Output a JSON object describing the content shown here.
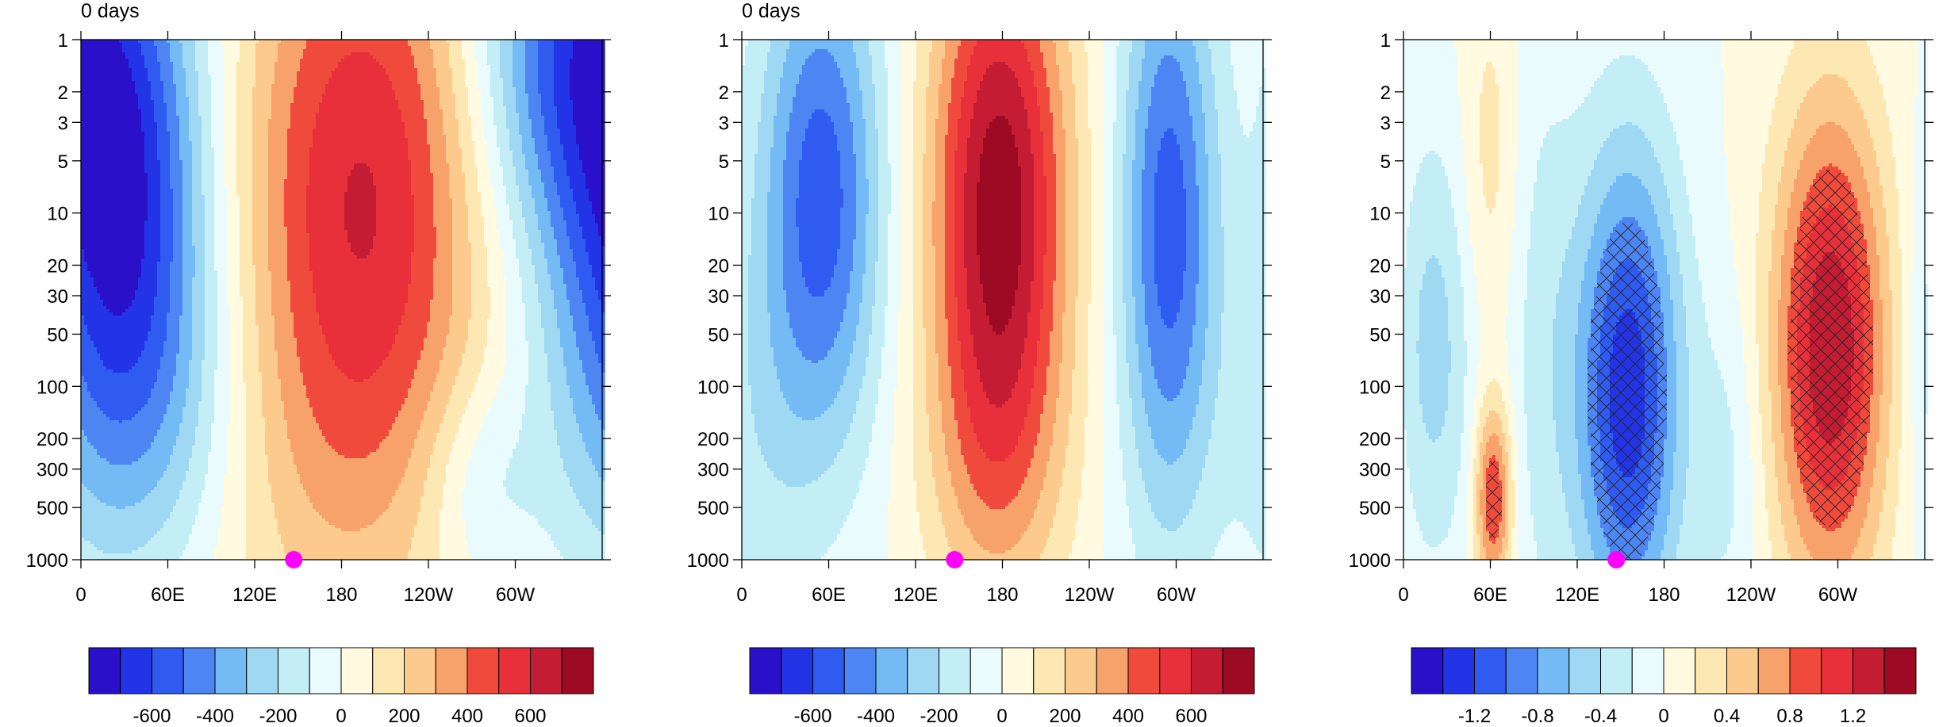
{
  "chart_data": [
    {
      "type": "heatmap",
      "title": "0 days",
      "x_tick_labels": [
        "0",
        "60E",
        "120E",
        "180",
        "120W",
        "60W"
      ],
      "y_tick_labels": [
        "1",
        "2",
        "3",
        "5",
        "10",
        "20",
        "30",
        "50",
        "100",
        "200",
        "300",
        "500",
        "1000"
      ],
      "y_axis": "log-reversed",
      "xlim": [
        0,
        360
      ],
      "ylim": [
        1000,
        1
      ],
      "marker": {
        "lon": 147,
        "level": 1000,
        "color": "#ff00ff"
      },
      "colorbar": {
        "levels": [
          -700,
          -600,
          -500,
          -400,
          -300,
          -200,
          -100,
          0,
          100,
          200,
          300,
          400,
          500,
          600,
          700
        ],
        "labels": [
          -600,
          -400,
          -200,
          0,
          200,
          400,
          600
        ],
        "label_text": [
          "-600",
          "-400",
          "-200",
          "0",
          "200",
          "400",
          "600"
        ],
        "colors": [
          "#2a10c8",
          "#2234e6",
          "#2f5bf0",
          "#4d85f2",
          "#74baf4",
          "#9ed8f2",
          "#c3eef6",
          "#e9fbfd",
          "#fffae0",
          "#fde7b2",
          "#fbca8c",
          "#f7a26b",
          "#f04a3c",
          "#e8303a",
          "#c41c33",
          "#9c0a24"
        ]
      },
      "blobs": [
        {
          "lon": 30,
          "level": 7,
          "value": -650,
          "spread_lon": 42,
          "spread_lnp": 2.5
        },
        {
          "lon": 45,
          "level": 150,
          "value": -260,
          "spread_lon": 60,
          "spread_lnp": 1.8
        },
        {
          "lon": 195,
          "level": 6,
          "value": 580,
          "spread_lon": 62,
          "spread_lnp": 3.0
        },
        {
          "lon": 155,
          "level": 300,
          "value": 170,
          "spread_lon": 80,
          "spread_lnp": 2.2
        },
        {
          "lon": 330,
          "level": 1,
          "value": -500,
          "spread_lon": 45,
          "spread_lnp": 2.0
        },
        {
          "lon": 275,
          "level": 350,
          "value": -180,
          "spread_lon": 28,
          "spread_lnp": 1.0
        }
      ]
    },
    {
      "type": "heatmap",
      "title": "0 days",
      "x_tick_labels": [
        "0",
        "60E",
        "120E",
        "180",
        "120W",
        "60W"
      ],
      "y_tick_labels": [
        "1",
        "2",
        "3",
        "5",
        "10",
        "20",
        "30",
        "50",
        "100",
        "200",
        "300",
        "500",
        "1000"
      ],
      "y_axis": "log-reversed",
      "xlim": [
        0,
        360
      ],
      "ylim": [
        1000,
        1
      ],
      "marker": {
        "lon": 147,
        "level": 1000,
        "color": "#ff00ff"
      },
      "colorbar": {
        "levels": [
          -700,
          -600,
          -500,
          -400,
          -300,
          -200,
          -100,
          0,
          100,
          200,
          300,
          400,
          500,
          600,
          700
        ],
        "labels": [
          -600,
          -400,
          -200,
          0,
          200,
          400,
          600
        ],
        "label_text": [
          "-600",
          "-400",
          "-200",
          "0",
          "200",
          "400",
          "600"
        ],
        "colors": [
          "#2a10c8",
          "#2234e6",
          "#2f5bf0",
          "#4d85f2",
          "#74baf4",
          "#9ed8f2",
          "#c3eef6",
          "#e9fbfd",
          "#fffae0",
          "#fde7b2",
          "#fbca8c",
          "#f7a26b",
          "#f04a3c",
          "#e8303a",
          "#c41c33",
          "#9c0a24"
        ]
      },
      "blobs": [
        {
          "lon": 55,
          "level": 8,
          "value": -560,
          "spread_lon": 30,
          "spread_lnp": 2.4
        },
        {
          "lon": 178,
          "level": 8,
          "value": 760,
          "spread_lon": 34,
          "spread_lnp": 2.6
        },
        {
          "lon": 295,
          "level": 12,
          "value": -560,
          "spread_lon": 24,
          "spread_lnp": 2.8
        },
        {
          "lon": 175,
          "level": 300,
          "value": 200,
          "spread_lon": 35,
          "spread_lnp": 1.6
        },
        {
          "lon": 10,
          "level": 200,
          "value": -120,
          "spread_lon": 28,
          "spread_lnp": 2.0
        }
      ]
    },
    {
      "type": "heatmap",
      "title": "",
      "x_tick_labels": [
        "0",
        "60E",
        "120E",
        "180",
        "120W",
        "60W"
      ],
      "y_tick_labels": [
        "1",
        "2",
        "3",
        "5",
        "10",
        "20",
        "30",
        "50",
        "100",
        "200",
        "300",
        "500",
        "1000"
      ],
      "y_axis": "log-reversed",
      "xlim": [
        0,
        360
      ],
      "ylim": [
        1000,
        1
      ],
      "marker": {
        "lon": 147,
        "level": 1000,
        "color": "#ff00ff"
      },
      "significance_hatching": true,
      "colorbar": {
        "levels": [
          -1.4,
          -1.2,
          -1.0,
          -0.8,
          -0.6,
          -0.4,
          -0.2,
          0,
          0.2,
          0.4,
          0.6,
          0.8,
          1.0,
          1.2,
          1.4
        ],
        "labels": [
          -1.2,
          -0.8,
          -0.4,
          0,
          0.4,
          0.8,
          1.2
        ],
        "label_text": [
          "-1.2",
          "-0.8",
          "-0.4",
          "0",
          "0.4",
          "0.8",
          "1.2"
        ],
        "colors": [
          "#2a10c8",
          "#2234e6",
          "#2f5bf0",
          "#4d85f2",
          "#74baf4",
          "#9ed8f2",
          "#c3eef6",
          "#e9fbfd",
          "#fffae0",
          "#fde7b2",
          "#fbca8c",
          "#f7a26b",
          "#f04a3c",
          "#e8303a",
          "#c41c33",
          "#9c0a24"
        ]
      },
      "blobs": [
        {
          "lon": 155,
          "level": 110,
          "value": -1.35,
          "spread_lon": 26,
          "spread_lnp": 2.3
        },
        {
          "lon": 295,
          "level": 60,
          "value": 1.4,
          "spread_lon": 28,
          "spread_lnp": 2.3
        },
        {
          "lon": 62,
          "level": 450,
          "value": 1.05,
          "spread_lon": 9,
          "spread_lnp": 0.9
        },
        {
          "lon": 20,
          "level": 60,
          "value": -0.5,
          "spread_lon": 20,
          "spread_lnp": 2.0
        },
        {
          "lon": 60,
          "level": 5,
          "value": 0.3,
          "spread_lon": 14,
          "spread_lnp": 1.8
        },
        {
          "lon": 95,
          "level": 50,
          "value": -0.25,
          "spread_lon": 18,
          "spread_lnp": 3.0
        },
        {
          "lon": 225,
          "level": 300,
          "value": -0.25,
          "spread_lon": 16,
          "spread_lnp": 1.6
        }
      ],
      "hatch_threshold": 0.82
    }
  ]
}
